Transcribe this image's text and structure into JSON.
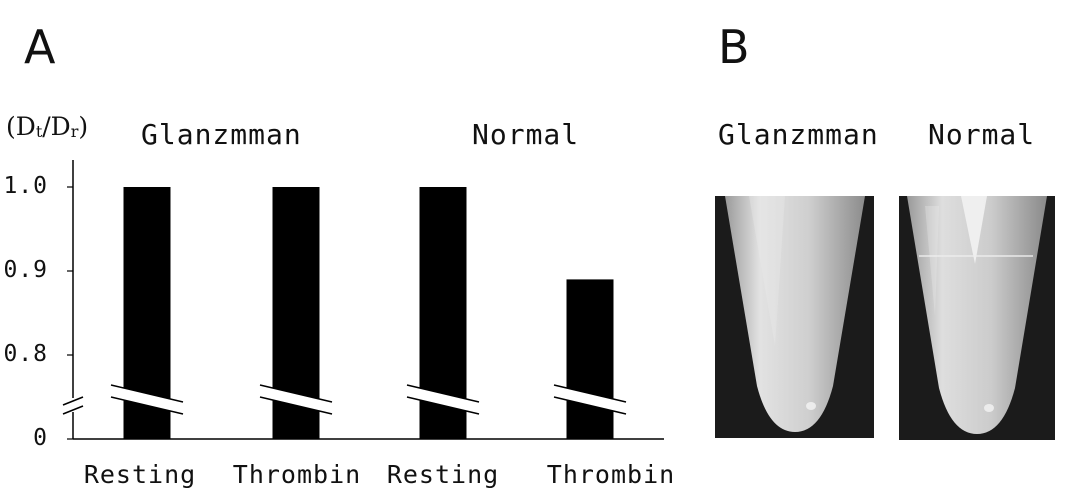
{
  "panels": {
    "a_letter": "A",
    "b_letter": "B"
  },
  "chart_data": {
    "type": "bar",
    "ylabel": {
      "main_open": "(D",
      "sub1": "t",
      "slash": "/D",
      "sub2": "r",
      "close": ")"
    },
    "groups": [
      "Glanzmman",
      "Normal"
    ],
    "categories": [
      "Resting",
      "Thrombin",
      "Resting",
      "Thrombin"
    ],
    "category_group": [
      0,
      0,
      1,
      1
    ],
    "values": [
      1.0,
      1.0,
      1.0,
      0.89
    ],
    "yticks": [
      "0",
      "0.8",
      "0.9",
      "1.0"
    ],
    "ytick_values": [
      0,
      0.8,
      0.9,
      1.0
    ],
    "ylim": [
      0.75,
      1.0
    ],
    "axis_break": true,
    "grid": false,
    "bar_color": "#000000"
  },
  "photos": {
    "labels": [
      "Glanzmman",
      "Normal"
    ],
    "background_color": "#1b1b1b",
    "tube_color": "#d9d9d9"
  }
}
